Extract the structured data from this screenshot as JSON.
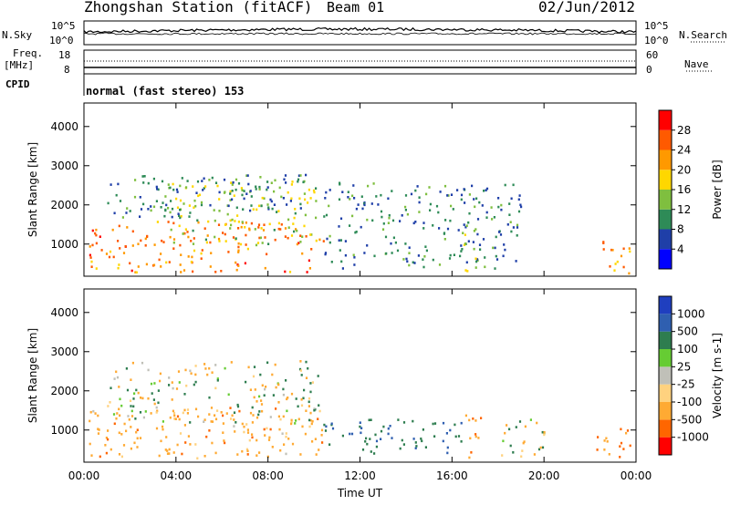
{
  "header": {
    "title": "Zhongshan Station (fitACF)",
    "beam": "Beam 01",
    "date": "02/Jun/2012"
  },
  "side_labels": {
    "nsky": "N.Sky",
    "freq": "Freq.",
    "freq_unit": "[MHz]",
    "cpid": "CPID",
    "nsearch": "N.Search",
    "nave": "Nave"
  },
  "noise_ticks": {
    "left_top": "10^5",
    "left_bottom": "10^0",
    "right_top": "10^5",
    "right_bottom": "10^0"
  },
  "freq_ticks": {
    "left_top": "18",
    "left_bottom": "8",
    "right_top": "60",
    "right_bottom": "0"
  },
  "cpid_text": "normal (fast stereo) 153",
  "colors": {
    "power": [
      "#0000ff",
      "#1f3fa8",
      "#2e8b57",
      "#7fbf3f",
      "#ffd700",
      "#ff9900",
      "#ff5a00",
      "#ff0000"
    ],
    "velocity": [
      "#1f3fbf",
      "#2f5fb0",
      "#2e7d4f",
      "#66cc33",
      "#c0c0b8",
      "#ffd27f",
      "#ffaa33",
      "#ff6600",
      "#ff0000"
    ]
  },
  "chart_data": [
    {
      "type": "heatmap",
      "panel": "power",
      "xlabel": "Time UT",
      "ylabel": "Slant Range [km]",
      "x_ticks": [
        "00:00",
        "04:00",
        "08:00",
        "12:00",
        "16:00",
        "20:00",
        "00:00"
      ],
      "x_range_hours": [
        0,
        24
      ],
      "y_ticks": [
        1000,
        2000,
        3000,
        4000
      ],
      "ylim": [
        180,
        4600
      ],
      "colorbar": {
        "label": "Power [dB]",
        "ticks": [
          4,
          8,
          12,
          16,
          20,
          24,
          28
        ],
        "range": [
          0,
          32
        ]
      },
      "echo_regions": [
        {
          "t0": 0.2,
          "t1": 10.4,
          "r0": 300,
          "r1": 1600,
          "value": 24
        },
        {
          "t0": 3.5,
          "t1": 10.2,
          "r0": 1000,
          "r1": 2700,
          "value": 15
        },
        {
          "t0": 1.0,
          "t1": 9.6,
          "r0": 1700,
          "r1": 2800,
          "value": 9
        },
        {
          "t0": 10.4,
          "t1": 19.0,
          "r0": 400,
          "r1": 2600,
          "value": 9
        },
        {
          "t0": 16.3,
          "t1": 17.2,
          "r0": 300,
          "r1": 1500,
          "value": 15
        },
        {
          "t0": 22.3,
          "t1": 23.7,
          "r0": 250,
          "r1": 1200,
          "value": 22
        }
      ]
    },
    {
      "type": "heatmap",
      "panel": "velocity",
      "xlabel": "Time UT",
      "ylabel": "Slant Range [km]",
      "x_ticks": [
        "00:00",
        "04:00",
        "08:00",
        "12:00",
        "16:00",
        "20:00",
        "00:00"
      ],
      "x_range_hours": [
        0,
        24
      ],
      "y_ticks": [
        1000,
        2000,
        3000,
        4000
      ],
      "ylim": [
        180,
        4600
      ],
      "colorbar": {
        "label": "Velocity [m s-1]",
        "ticks": [
          1000,
          500,
          100,
          25,
          -25,
          -100,
          -500,
          -1000
        ],
        "range": [
          -1500,
          1500
        ]
      },
      "echo_regions": [
        {
          "t0": 0.2,
          "t1": 10.4,
          "r0": 300,
          "r1": 1600,
          "value": -300
        },
        {
          "t0": 1.0,
          "t1": 10.2,
          "r0": 1200,
          "r1": 2800,
          "value": 0
        },
        {
          "t0": 10.4,
          "t1": 16.5,
          "r0": 400,
          "r1": 1300,
          "value": 400
        },
        {
          "t0": 16.4,
          "t1": 17.3,
          "r0": 300,
          "r1": 1400,
          "value": -400
        },
        {
          "t0": 18.0,
          "t1": 20.0,
          "r0": 300,
          "r1": 1400,
          "value": 0
        },
        {
          "t0": 22.2,
          "t1": 23.8,
          "r0": 250,
          "r1": 1100,
          "value": -600
        }
      ]
    }
  ]
}
